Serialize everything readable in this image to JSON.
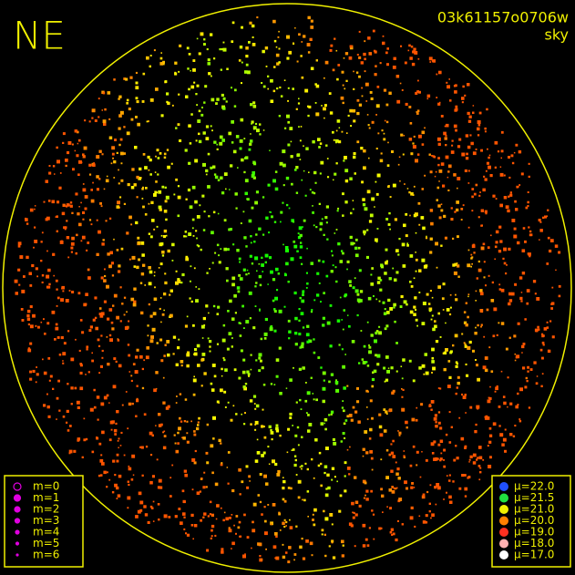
{
  "header": {
    "direction": "NE",
    "frame": "03k61157o0706w",
    "filter": "sky"
  },
  "magnitude_legend": {
    "color": "#e000e0",
    "items": [
      "m=0",
      "m=1",
      "m=2",
      "m=3",
      "m=4",
      "m=5",
      "m=6"
    ]
  },
  "sky_legend": {
    "items": [
      {
        "label": "μ=22.0",
        "color": "#2050ff"
      },
      {
        "label": "μ=21.5",
        "color": "#20e040"
      },
      {
        "label": "μ=21.0",
        "color": "#f0f000"
      },
      {
        "label": "μ=20.0",
        "color": "#ff8000"
      },
      {
        "label": "μ=19.0",
        "color": "#ff3020"
      },
      {
        "label": "μ=18.0",
        "color": "#ffb0b0"
      },
      {
        "label": "μ=17.0",
        "color": "#ffffff"
      }
    ]
  }
}
